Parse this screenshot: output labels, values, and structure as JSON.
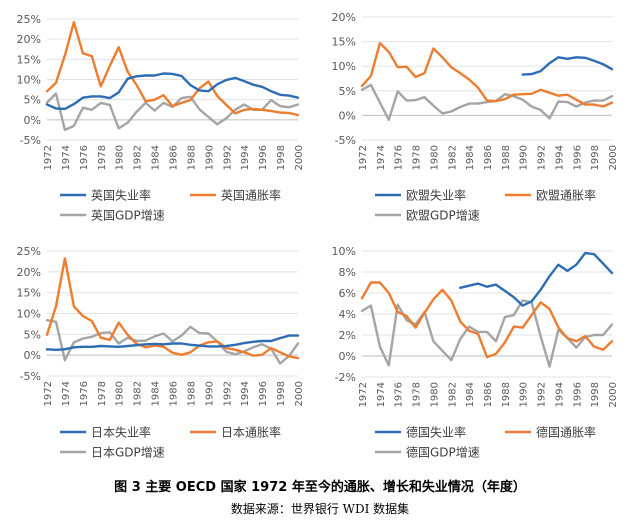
{
  "chart_data": [
    {
      "type": "line",
      "x": [
        1972,
        1973,
        1974,
        1975,
        1976,
        1977,
        1978,
        1979,
        1980,
        1981,
        1982,
        1983,
        1984,
        1985,
        1986,
        1987,
        1988,
        1989,
        1990,
        1991,
        1992,
        1993,
        1994,
        1995,
        1996,
        1997,
        1998,
        1999,
        2000
      ],
      "xticks": [
        1972,
        1974,
        1976,
        1978,
        1980,
        1982,
        1984,
        1986,
        1988,
        1990,
        1992,
        1994,
        1996,
        1998,
        2000
      ],
      "ylim": [
        -5,
        25
      ],
      "yticks": [
        -5,
        0,
        5,
        10,
        15,
        20,
        25
      ],
      "ytick_labels": [
        "-5%",
        "0%",
        "5%",
        "10%",
        "15%",
        "20%",
        "25%"
      ],
      "series": [
        {
          "name": "英国失业率",
          "color": "#2E6DB4",
          "values": [
            3.8,
            2.8,
            2.7,
            3.9,
            5.5,
            5.8,
            5.8,
            5.4,
            6.8,
            10.2,
            10.8,
            11.0,
            11.0,
            11.5,
            11.4,
            10.9,
            8.6,
            7.3,
            7.1,
            8.8,
            9.9,
            10.4,
            9.6,
            8.7,
            8.2,
            7.1,
            6.2,
            6.0,
            5.5
          ]
        },
        {
          "name": "英国通胀率",
          "color": "#ED7D31",
          "values": [
            7.1,
            9.2,
            16.0,
            24.2,
            16.5,
            15.8,
            8.3,
            13.4,
            18.0,
            11.9,
            8.6,
            4.6,
            5.0,
            6.1,
            3.4,
            4.2,
            4.9,
            7.8,
            9.5,
            5.9,
            3.7,
            1.6,
            2.5,
            2.7,
            2.5,
            2.2,
            1.8,
            1.7,
            1.2
          ]
        },
        {
          "name": "英国GDP增速",
          "color": "#A5A5A5",
          "values": [
            4.3,
            6.5,
            -2.5,
            -1.5,
            3.0,
            2.5,
            4.2,
            3.7,
            -2.1,
            -0.7,
            2.0,
            4.2,
            2.3,
            4.2,
            3.2,
            5.4,
            5.7,
            2.6,
            0.7,
            -1.1,
            0.4,
            2.5,
            3.8,
            2.5,
            2.5,
            4.9,
            3.4,
            3.1,
            3.8
          ]
        }
      ]
    },
    {
      "type": "line",
      "x": [
        1972,
        1973,
        1974,
        1975,
        1976,
        1977,
        1978,
        1979,
        1980,
        1981,
        1982,
        1983,
        1984,
        1985,
        1986,
        1987,
        1988,
        1989,
        1990,
        1991,
        1992,
        1993,
        1994,
        1995,
        1996,
        1997,
        1998,
        1999,
        2000
      ],
      "xticks": [
        1972,
        1974,
        1976,
        1978,
        1980,
        1982,
        1984,
        1986,
        1988,
        1990,
        1992,
        1994,
        1996,
        1998,
        2000
      ],
      "ylim": [
        -5,
        20
      ],
      "yticks": [
        -5,
        0,
        5,
        10,
        15,
        20
      ],
      "ytick_labels": [
        "-5%",
        "0%",
        "5%",
        "10%",
        "15%",
        "20%"
      ],
      "series": [
        {
          "name": "欧盟失业率",
          "color": "#2E6DB4",
          "values": [
            null,
            null,
            null,
            null,
            null,
            null,
            null,
            null,
            null,
            null,
            null,
            null,
            null,
            null,
            null,
            null,
            null,
            null,
            8.3,
            8.4,
            9.0,
            10.6,
            11.8,
            11.5,
            11.8,
            11.7,
            11.1,
            10.4,
            9.4
          ]
        },
        {
          "name": "欧盟通胀率",
          "color": "#ED7D31",
          "values": [
            6.0,
            8.0,
            14.7,
            12.9,
            9.8,
            9.9,
            7.8,
            8.6,
            13.6,
            11.8,
            9.8,
            8.6,
            7.3,
            5.6,
            3.0,
            2.9,
            3.3,
            4.2,
            4.3,
            4.4,
            5.2,
            4.6,
            4.0,
            4.2,
            3.2,
            2.2,
            2.2,
            1.8,
            2.6
          ]
        },
        {
          "name": "欧盟GDP增速",
          "color": "#A5A5A5",
          "values": [
            5.2,
            6.2,
            2.6,
            -0.9,
            4.9,
            3.0,
            3.1,
            3.7,
            2.0,
            0.4,
            0.8,
            1.7,
            2.4,
            2.4,
            2.7,
            2.9,
            4.3,
            3.9,
            3.2,
            1.8,
            1.1,
            -0.6,
            2.8,
            2.7,
            1.8,
            2.6,
            3.0,
            3.0,
            3.9
          ]
        }
      ]
    },
    {
      "type": "line",
      "x": [
        1972,
        1973,
        1974,
        1975,
        1976,
        1977,
        1978,
        1979,
        1980,
        1981,
        1982,
        1983,
        1984,
        1985,
        1986,
        1987,
        1988,
        1989,
        1990,
        1991,
        1992,
        1993,
        1994,
        1995,
        1996,
        1997,
        1998,
        1999,
        2000
      ],
      "xticks": [
        1972,
        1974,
        1976,
        1978,
        1980,
        1982,
        1984,
        1986,
        1988,
        1990,
        1992,
        1994,
        1996,
        1998,
        2000
      ],
      "ylim": [
        -5,
        25
      ],
      "yticks": [
        -5,
        0,
        5,
        10,
        15,
        20,
        25
      ],
      "ytick_labels": [
        "-5%",
        "0%",
        "5%",
        "10%",
        "15%",
        "20%",
        "25%"
      ],
      "series": [
        {
          "name": "日本失业率",
          "color": "#2E6DB4",
          "values": [
            1.4,
            1.3,
            1.4,
            1.9,
            2.0,
            2.0,
            2.2,
            2.1,
            2.0,
            2.2,
            2.4,
            2.6,
            2.7,
            2.6,
            2.8,
            2.8,
            2.5,
            2.3,
            2.1,
            2.1,
            2.2,
            2.5,
            2.9,
            3.2,
            3.4,
            3.4,
            4.1,
            4.7,
            4.7
          ]
        },
        {
          "name": "日本通胀率",
          "color": "#ED7D31",
          "values": [
            4.9,
            11.7,
            23.2,
            11.7,
            9.4,
            8.2,
            4.2,
            3.7,
            7.8,
            4.9,
            2.7,
            1.9,
            2.3,
            2.0,
            0.6,
            0.1,
            0.7,
            2.3,
            3.1,
            3.3,
            1.7,
            1.3,
            0.7,
            -0.1,
            0.1,
            1.7,
            0.7,
            -0.3,
            -0.7
          ]
        },
        {
          "name": "日本GDP增速",
          "color": "#A5A5A5",
          "values": [
            8.4,
            8.0,
            -1.2,
            3.1,
            4.0,
            4.4,
            5.3,
            5.5,
            2.8,
            4.2,
            3.4,
            3.5,
            4.5,
            5.2,
            3.3,
            4.7,
            6.8,
            5.3,
            5.2,
            3.3,
            0.8,
            0.2,
            0.9,
            1.9,
            2.6,
            1.6,
            -2.0,
            -0.2,
            2.8
          ]
        }
      ]
    },
    {
      "type": "line",
      "x": [
        1972,
        1973,
        1974,
        1975,
        1976,
        1977,
        1978,
        1979,
        1980,
        1981,
        1982,
        1983,
        1984,
        1985,
        1986,
        1987,
        1988,
        1989,
        1990,
        1991,
        1992,
        1993,
        1994,
        1995,
        1996,
        1997,
        1998,
        1999,
        2000
      ],
      "xticks": [
        1972,
        1974,
        1976,
        1978,
        1980,
        1982,
        1984,
        1986,
        1988,
        1990,
        1992,
        1994,
        1996,
        1998,
        2000
      ],
      "ylim": [
        -2,
        10
      ],
      "yticks": [
        -2,
        0,
        2,
        4,
        6,
        8,
        10
      ],
      "ytick_labels": [
        "-2%",
        "0%",
        "2%",
        "4%",
        "6%",
        "8%",
        "10%"
      ],
      "series": [
        {
          "name": "德国失业率",
          "color": "#2E6DB4",
          "values": [
            null,
            null,
            null,
            null,
            null,
            null,
            null,
            null,
            null,
            null,
            null,
            6.5,
            6.7,
            6.9,
            6.6,
            6.8,
            6.2,
            5.6,
            4.8,
            5.2,
            6.3,
            7.6,
            8.7,
            8.1,
            8.7,
            9.8,
            9.7,
            8.8,
            7.9
          ]
        },
        {
          "name": "德国通胀率",
          "color": "#ED7D31",
          "values": [
            5.5,
            7.0,
            7.0,
            6.0,
            4.2,
            3.8,
            2.7,
            4.1,
            5.4,
            6.3,
            5.3,
            3.3,
            2.4,
            2.1,
            -0.1,
            0.2,
            1.3,
            2.8,
            2.7,
            3.9,
            5.1,
            4.5,
            2.7,
            1.7,
            1.4,
            1.9,
            0.9,
            0.6,
            1.4
          ]
        },
        {
          "name": "德国GDP增速",
          "color": "#A5A5A5",
          "values": [
            4.3,
            4.8,
            0.9,
            -0.9,
            4.9,
            3.4,
            3.0,
            4.2,
            1.4,
            0.5,
            -0.4,
            1.6,
            2.8,
            2.3,
            2.3,
            1.4,
            3.7,
            3.9,
            5.3,
            5.1,
            1.9,
            -1.0,
            2.5,
            1.7,
            0.8,
            1.8,
            2.0,
            2.0,
            3.0
          ]
        }
      ]
    }
  ],
  "caption": {
    "title": "图 3 主要 OECD 国家 1972 年至今的通胀、增长和失业情况（年度）",
    "source": "数据来源：世界银行 WDI 数据集"
  }
}
